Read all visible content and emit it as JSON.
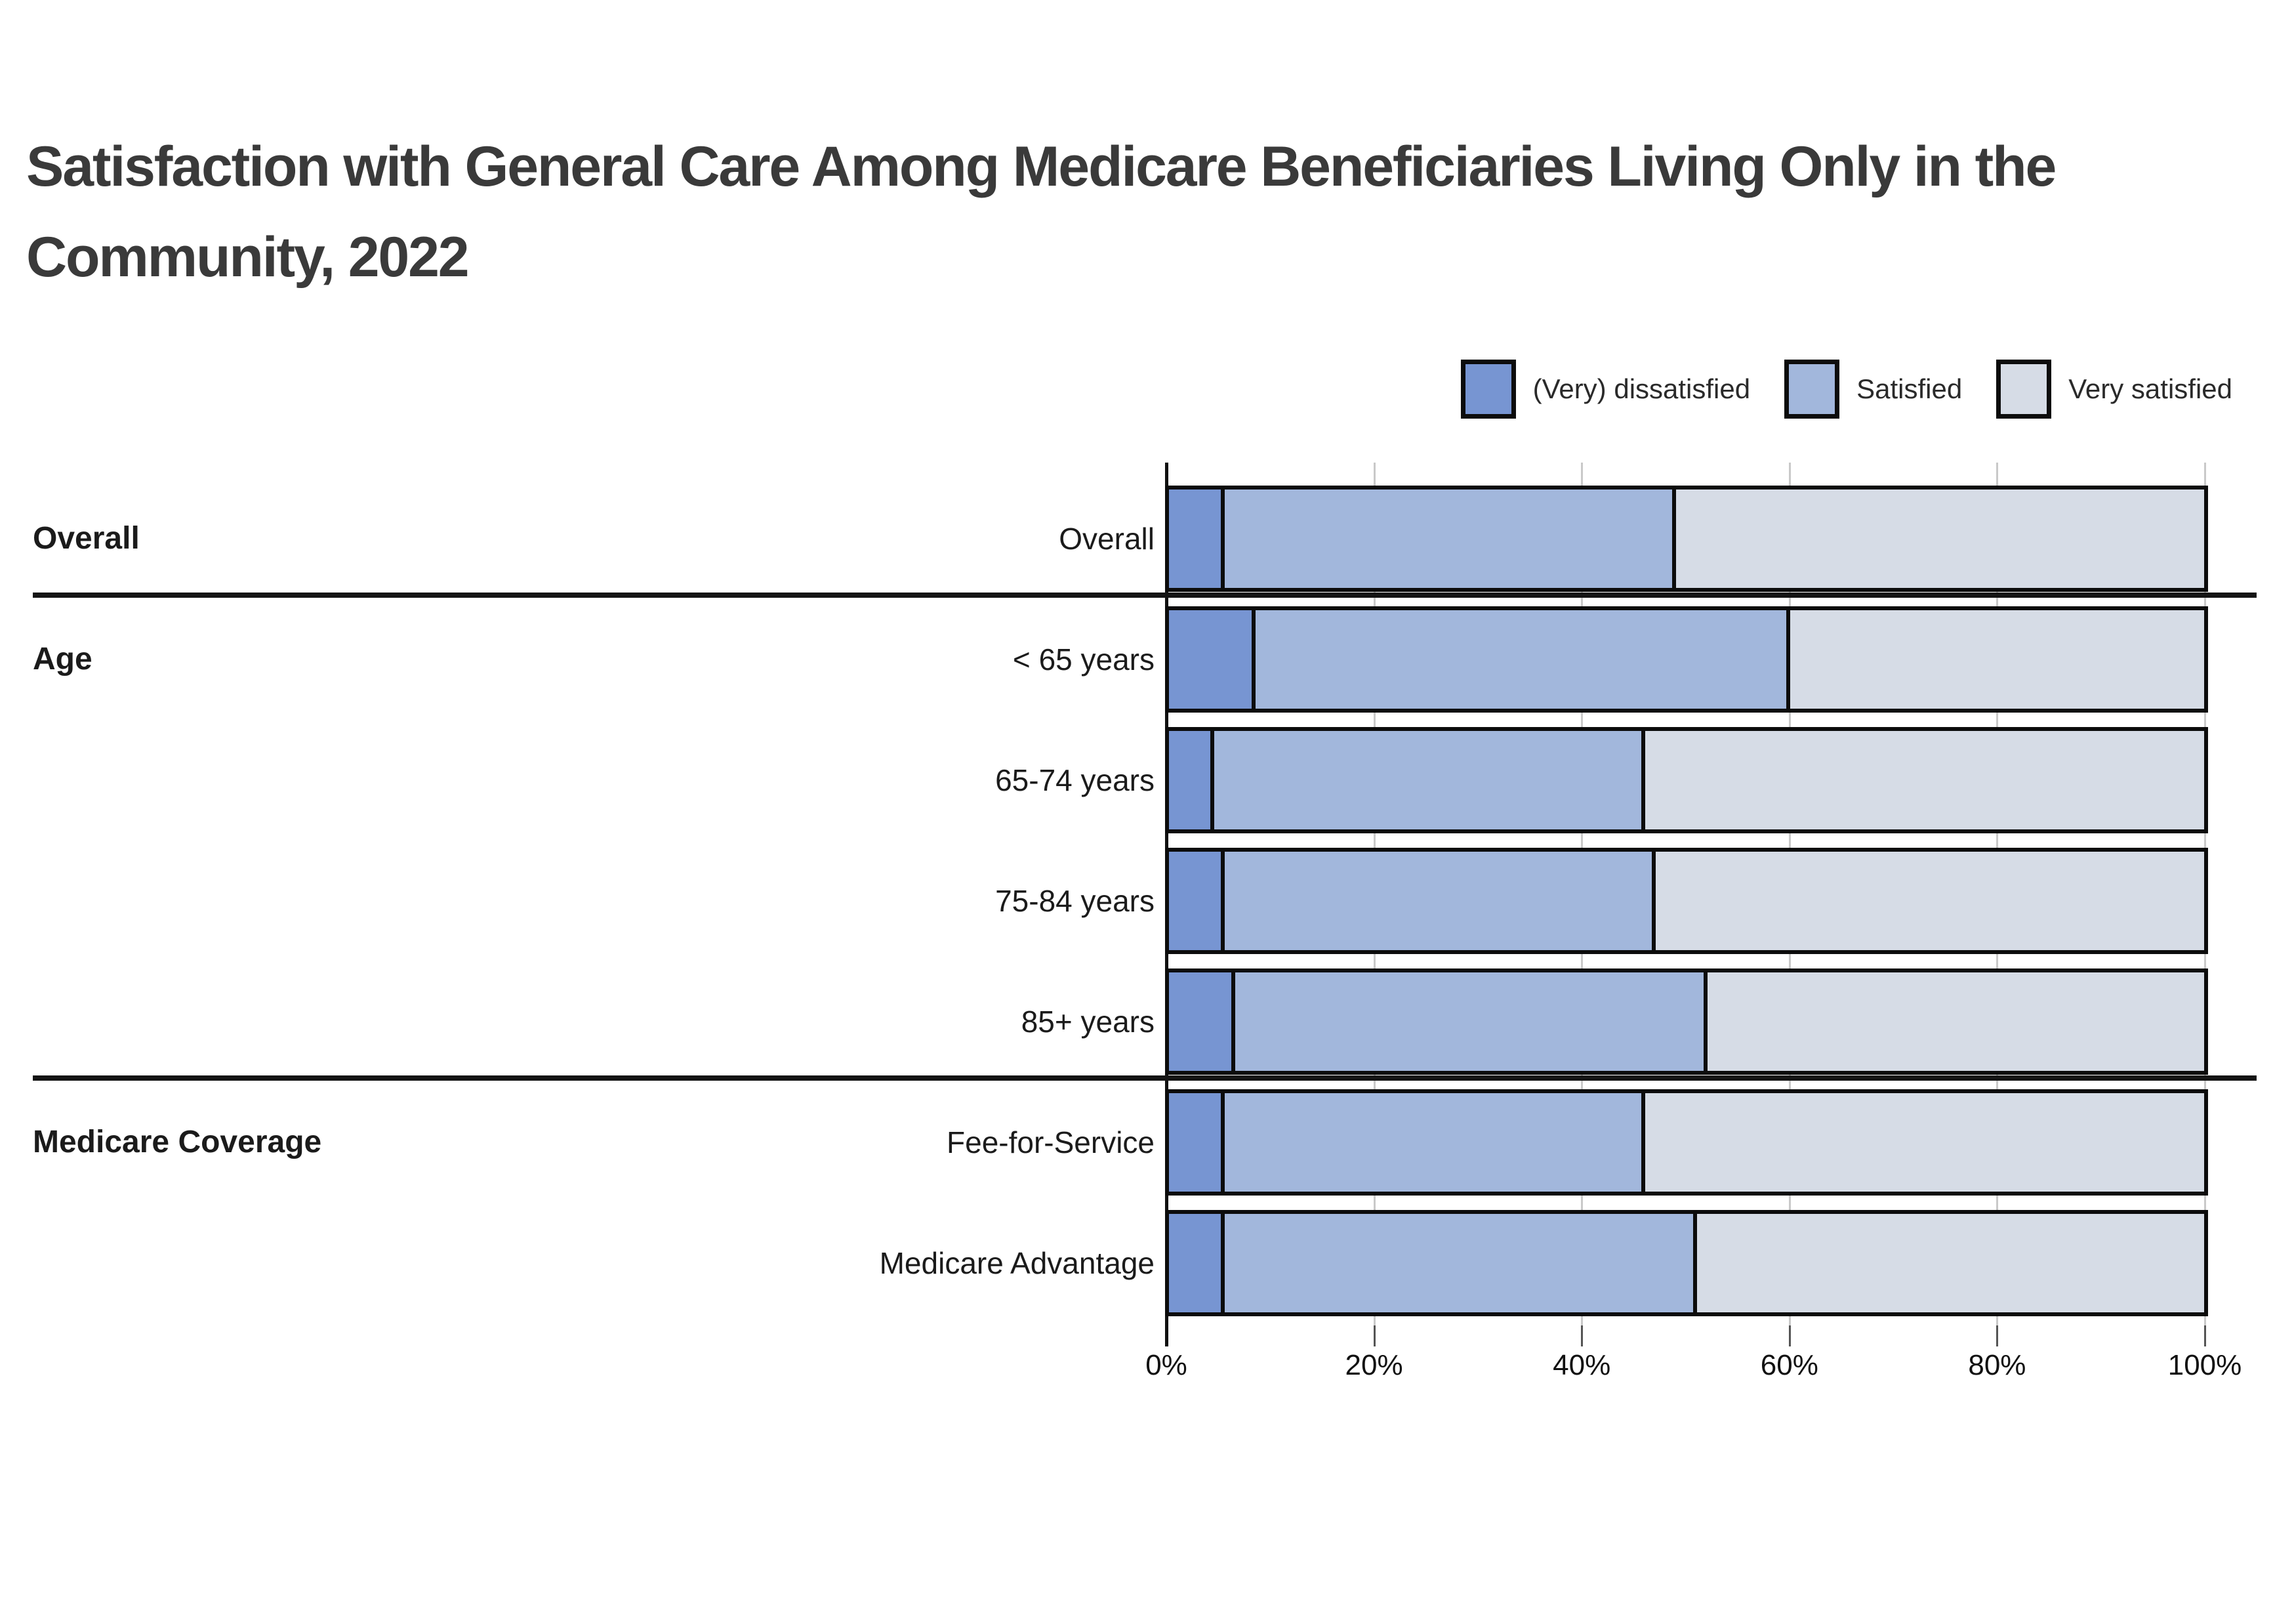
{
  "chart_data": {
    "type": "bar",
    "stacked": true,
    "orientation": "horizontal",
    "title": "Satisfaction with General Care Among Medicare Beneficiaries Living Only in the Community, 2022",
    "title_lines": [
      "Satisfaction with General Care Among Medicare Beneficiaries Living Only in the",
      "Community, 2022"
    ],
    "series": [
      {
        "name": "(Very) dissatisfied",
        "color": "#7795D2"
      },
      {
        "name": "Satisfied",
        "color": "#A2B7DC"
      },
      {
        "name": "Very satisfied",
        "color": "#D6DCE6"
      }
    ],
    "groups": [
      {
        "label": "Overall",
        "rows": [
          {
            "label": "Overall",
            "values": [
              5,
              44,
              51
            ]
          }
        ]
      },
      {
        "label": "Age",
        "rows": [
          {
            "label": "< 65 years",
            "values": [
              8,
              52,
              40
            ]
          },
          {
            "label": "65-74 years",
            "values": [
              4,
              42,
              54
            ]
          },
          {
            "label": "75-84 years",
            "values": [
              5,
              42,
              53
            ]
          },
          {
            "label": "85+ years",
            "values": [
              6,
              46,
              48
            ]
          }
        ]
      },
      {
        "label": "Medicare Coverage",
        "rows": [
          {
            "label": "Fee-for-Service",
            "values": [
              5,
              41,
              54
            ]
          },
          {
            "label": "Medicare Advantage",
            "values": [
              5,
              46,
              49
            ]
          }
        ]
      }
    ],
    "x_axis": {
      "tick_labels": [
        "0%",
        "20%",
        "40%",
        "60%",
        "80%",
        "100%"
      ],
      "min": 0,
      "max": 100,
      "unit": "%"
    },
    "legend_position": "top-right",
    "grid": "vertical",
    "bar_border_color": "#0C0C0C"
  }
}
